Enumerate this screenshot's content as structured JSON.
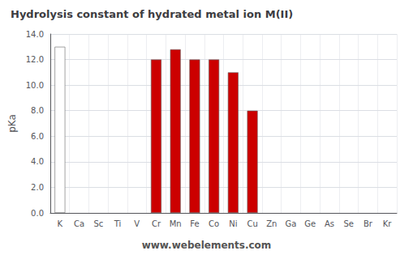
{
  "chart_data": {
    "type": "bar",
    "title": "Hydrolysis constant of hydrated metal ion M(II)",
    "y_label": "pKa",
    "annotations": [
      "www.webelements.com"
    ],
    "categories": [
      "K",
      "Ca",
      "Sc",
      "Ti",
      "V",
      "Cr",
      "Mn",
      "Fe",
      "Co",
      "Ni",
      "Cu",
      "Zn",
      "Ga",
      "Ge",
      "As",
      "Se",
      "Br",
      "Kr"
    ],
    "values": [
      13.0,
      null,
      null,
      null,
      null,
      12.0,
      12.8,
      12.0,
      12.0,
      11.0,
      8.0,
      null,
      null,
      null,
      null,
      null,
      null,
      null
    ],
    "colors": [
      "#ffffff",
      "#cc0000",
      "#888888",
      "#cc0000",
      "#cc0000",
      "#cc0000",
      "#cc0000",
      "#cc0000",
      "#cc0000",
      "#cc0000",
      "#cc0000",
      "#ccaa00",
      "#ccaa00",
      "#ccaa00",
      "#ccaa00",
      "#cc8800",
      "#996600",
      "#ccaa44"
    ],
    "ylim": [
      0,
      14.0
    ],
    "yticks": [
      {
        "value": 0,
        "label": "0.0"
      },
      {
        "value": 2,
        "label": "2.0"
      },
      {
        "value": 4,
        "label": "4.0"
      },
      {
        "value": 6,
        "label": "6.0"
      },
      {
        "value": 8,
        "label": "8.0"
      },
      {
        "value": 10,
        "label": "10.0"
      },
      {
        "value": 12,
        "label": "12.0"
      },
      {
        "value": 14,
        "label": "14.0"
      }
    ],
    "grid": true
  }
}
